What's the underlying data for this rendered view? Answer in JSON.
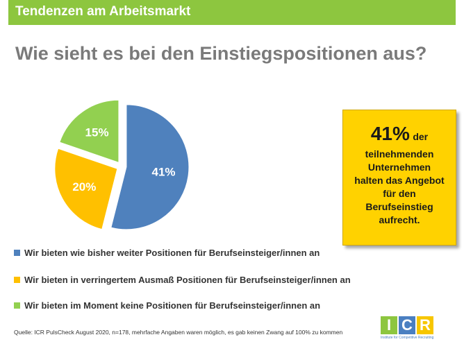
{
  "header": {
    "title": "Tendenzen am Arbeitsmarkt"
  },
  "main_title": "Wie sieht es bei den Einstiegspositionen aus?",
  "chart_data": {
    "type": "pie",
    "slices": [
      {
        "label": "Wir bieten wie bisher weiter Positionen für Berufseinsteiger/innen an",
        "value": 41,
        "display": "41%",
        "color": "#4f81bd"
      },
      {
        "label": "Wir bieten in verringertem Ausmaß Positionen für Berufseinsteiger/innen an",
        "value": 20,
        "display": "20%",
        "color": "#ffc000"
      },
      {
        "label": "Wir bieten im Moment keine Positionen für Berufseinsteiger/innen an",
        "value": 15,
        "display": "15%",
        "color": "#92d050"
      }
    ]
  },
  "callout": {
    "percent": "41%",
    "word": "der",
    "text": "teilnehmenden Unternehmen halten das Angebot für den Berufseinstieg aufrecht."
  },
  "footnote": "Quelle: ICR PulsCheck August 2020, n=178, mehrfache Angaben waren möglich, es gab keinen Zwang auf 100% zu kommen",
  "logo": {
    "letters": [
      "I",
      "C",
      "R"
    ],
    "colors": [
      "#8dc63f",
      "#4a7fc1",
      "#f7c600"
    ],
    "tagline": "Institute for Competitive Recruiting"
  }
}
